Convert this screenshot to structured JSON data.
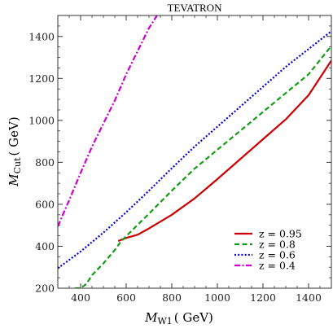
{
  "chart_data": {
    "type": "line",
    "title": "TEVATRON",
    "xlabel": "M W1 ( GeV)",
    "xlabel_main": "M",
    "xlabel_sub": "W1",
    "xlabel_unit": "( GeV)",
    "ylabel": "M Cut ( GeV)",
    "ylabel_main": "M",
    "ylabel_sub": "Cut",
    "ylabel_unit": "( GeV)",
    "xlim": [
      300,
      1500
    ],
    "ylim": [
      200,
      1500
    ],
    "xticks": [
      400,
      600,
      800,
      1000,
      1200,
      1400
    ],
    "yticks": [
      200,
      400,
      600,
      800,
      1000,
      1200,
      1400
    ],
    "legend_position": "bottom-right",
    "grid": false,
    "series": [
      {
        "name": "z = 0.95",
        "color": "#cc0000",
        "dash": "solid",
        "x": [
          565,
          600,
          650,
          700,
          800,
          900,
          1000,
          1100,
          1200,
          1300,
          1400,
          1500
        ],
        "y": [
          425,
          440,
          455,
          485,
          550,
          628,
          720,
          815,
          910,
          1005,
          1120,
          1285
        ]
      },
      {
        "name": "z = 0.8",
        "color": "#159c15",
        "dash": "dashed",
        "x": [
          375,
          400,
          425,
          450,
          500,
          550,
          575,
          600,
          650,
          700,
          800,
          900,
          1000,
          1100,
          1200,
          1300,
          1400,
          1500
        ],
        "y": [
          200,
          200,
          220,
          262,
          318,
          382,
          420,
          448,
          502,
          555,
          665,
          770,
          860,
          950,
          1040,
          1130,
          1220,
          1355
        ]
      },
      {
        "name": "z = 0.6",
        "color": "#0000e0",
        "dash": "dotted",
        "x": [
          300,
          400,
          500,
          600,
          700,
          800,
          900,
          1000,
          1100,
          1200,
          1300,
          1400,
          1500
        ],
        "y": [
          295,
          375,
          465,
          562,
          665,
          772,
          875,
          970,
          1065,
          1160,
          1255,
          1340,
          1425
        ]
      },
      {
        "name": "z = 0.4",
        "color": "#cc00cc",
        "dash": "dashdot",
        "x": [
          300,
          350,
          400,
          450,
          500,
          550,
          600,
          650,
          700,
          735
        ],
        "y": [
          495,
          620,
          750,
          875,
          985,
          1095,
          1220,
          1330,
          1440,
          1500
        ]
      }
    ]
  }
}
